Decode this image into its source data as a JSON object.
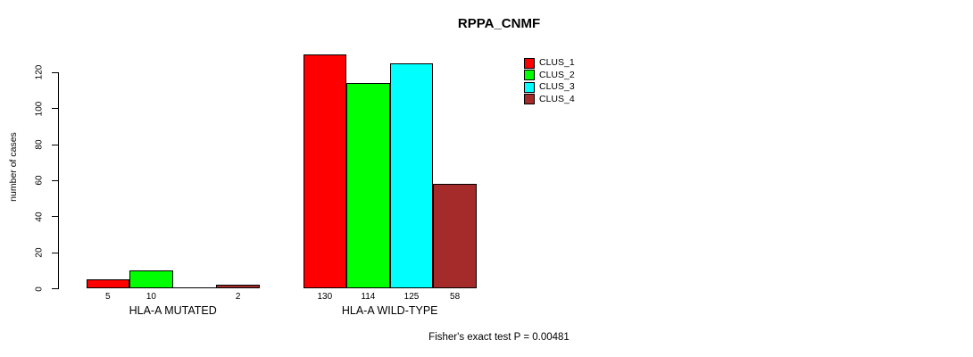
{
  "chart_data": {
    "type": "bar",
    "title": "RPPA_CNMF",
    "ylabel": "number of cases",
    "xlabel": "",
    "ylim": [
      0,
      130
    ],
    "yticks": [
      0,
      20,
      40,
      60,
      80,
      100,
      120
    ],
    "grid": false,
    "legend_position": "top-right",
    "categories": [
      "HLA-A MUTATED",
      "HLA-A WILD-TYPE"
    ],
    "series": [
      {
        "name": "CLUS_1",
        "color": "#FF0000",
        "values": [
          5,
          130
        ],
        "value_labels": [
          "5",
          "130"
        ]
      },
      {
        "name": "CLUS_2",
        "color": "#00FF00",
        "values": [
          10,
          114
        ],
        "value_labels": [
          "10",
          "114"
        ]
      },
      {
        "name": "CLUS_3",
        "color": "#00FFFF",
        "values": [
          0,
          125
        ],
        "value_labels": [
          "",
          "125"
        ]
      },
      {
        "name": "CLUS_4",
        "color": "#A52A2A",
        "values": [
          2,
          58
        ],
        "value_labels": [
          "2",
          "58"
        ]
      }
    ],
    "annotation": "Fisher's exact test P = 0.00481",
    "axis_color": "#000000",
    "background_color": "#FFFFFF"
  }
}
